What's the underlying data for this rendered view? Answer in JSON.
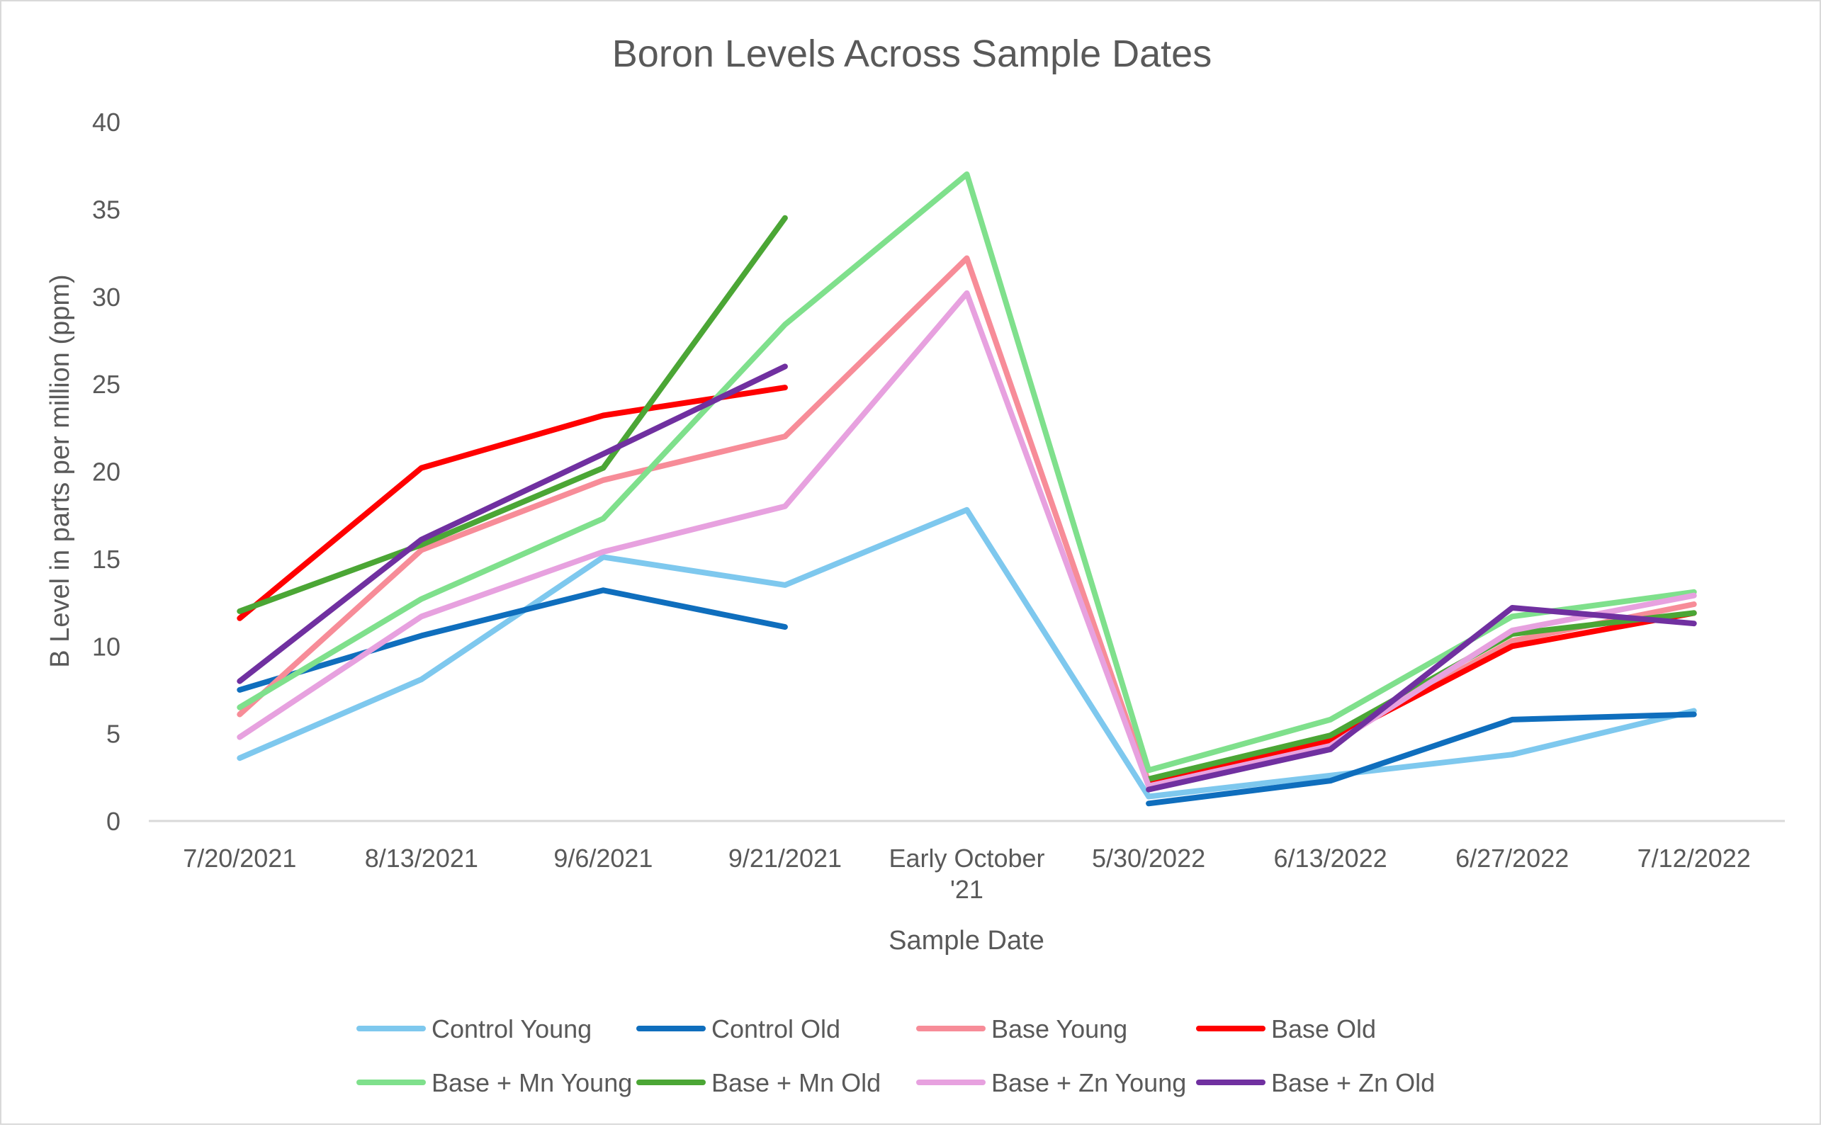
{
  "chart_data": {
    "type": "line",
    "title": "Boron Levels Across Sample Dates",
    "xlabel": "Sample Date",
    "ylabel": "B Level in parts per million (ppm)",
    "ylim": [
      0,
      40
    ],
    "yticks": [
      "0",
      "5",
      "10",
      "15",
      "20",
      "25",
      "30",
      "35",
      "40"
    ],
    "grid": false,
    "legend_position": "bottom",
    "categories": [
      [
        "7/20/2021"
      ],
      [
        "8/13/2021"
      ],
      [
        "9/6/2021"
      ],
      [
        "9/21/2021"
      ],
      [
        "Early October",
        "'21"
      ],
      [
        "5/30/2022"
      ],
      [
        "6/13/2022"
      ],
      [
        "6/27/2022"
      ],
      [
        "7/12/2022"
      ]
    ],
    "series": [
      {
        "name": "Control Young",
        "color": "#7ec8ee",
        "values": [
          3.6,
          8.1,
          15.1,
          13.5,
          17.8,
          1.4,
          2.6,
          3.8,
          6.3
        ]
      },
      {
        "name": "Control Old",
        "color": "#0f6ebd",
        "values": [
          7.5,
          10.6,
          13.2,
          11.1,
          null,
          1.0,
          2.3,
          5.8,
          6.1
        ]
      },
      {
        "name": "Base Young",
        "color": "#f78c98",
        "values": [
          6.1,
          15.5,
          19.5,
          22.0,
          32.2,
          2.2,
          4.5,
          10.3,
          12.4
        ]
      },
      {
        "name": "Base Old",
        "color": "#ff0000",
        "values": [
          11.6,
          20.2,
          23.2,
          24.8,
          null,
          2.2,
          4.6,
          10.0,
          11.9
        ]
      },
      {
        "name": "Base + Mn Young",
        "color": "#7fe08c",
        "values": [
          6.5,
          12.7,
          17.3,
          28.4,
          37.0,
          2.9,
          5.8,
          11.7,
          13.1
        ]
      },
      {
        "name": "Base + Mn Old",
        "color": "#4ba635",
        "values": [
          12.0,
          15.8,
          20.2,
          34.5,
          null,
          2.4,
          4.9,
          10.7,
          11.9
        ]
      },
      {
        "name": "Base + Zn Young",
        "color": "#e7a1df",
        "values": [
          4.8,
          11.7,
          15.4,
          18.0,
          30.2,
          2.0,
          4.3,
          10.9,
          12.9
        ]
      },
      {
        "name": "Base + Zn Old",
        "color": "#7030a0",
        "values": [
          8.0,
          16.1,
          21.0,
          26.0,
          null,
          1.8,
          4.1,
          12.2,
          11.3
        ]
      }
    ]
  }
}
